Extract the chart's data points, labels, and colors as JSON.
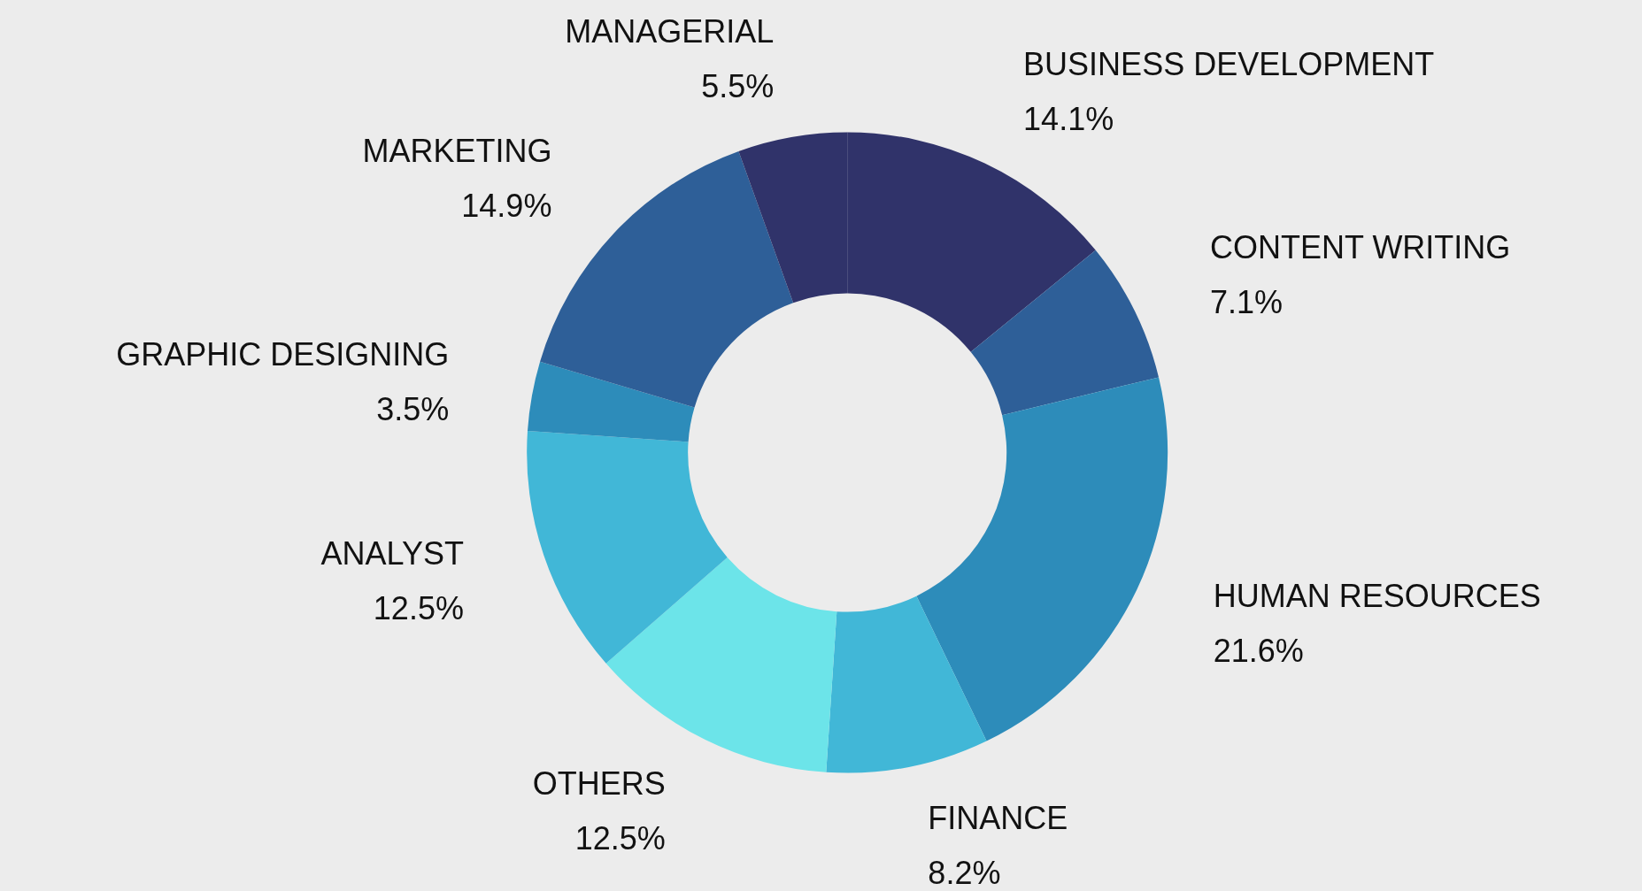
{
  "chart_data": {
    "type": "donut",
    "categories": [
      "BUSINESS DEVELOPMENT",
      "CONTENT WRITING",
      "HUMAN RESOURCES",
      "FINANCE",
      "OTHERS",
      "ANALYST",
      "GRAPHIC DESIGNING",
      "MARKETING",
      "MANAGERIAL"
    ],
    "values": [
      14.1,
      7.1,
      21.6,
      8.2,
      12.5,
      12.5,
      3.5,
      14.9,
      5.5
    ],
    "value_labels": [
      "14.1%",
      "7.1%",
      "21.6%",
      "8.2%",
      "12.5%",
      "12.5%",
      "3.5%",
      "14.9%",
      "5.5%"
    ],
    "colors": [
      "#30336a",
      "#2e5f98",
      "#2d8cba",
      "#41b7d7",
      "#6ce4e9",
      "#41b7d7",
      "#2d8cba",
      "#2e5f98",
      "#30336a"
    ],
    "legend": false
  }
}
